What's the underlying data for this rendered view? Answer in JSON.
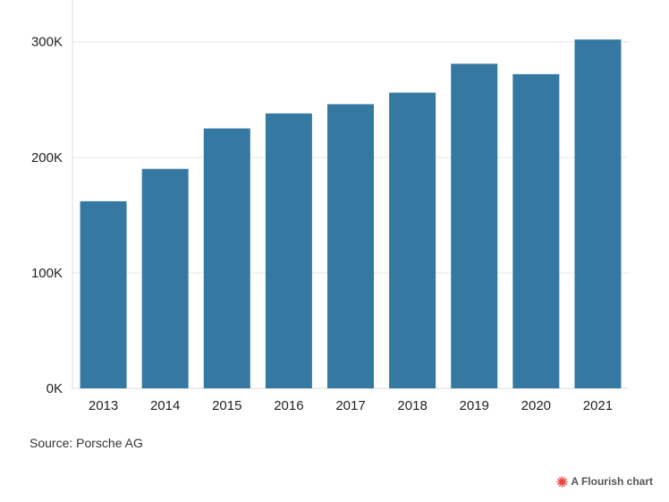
{
  "chart_data": {
    "type": "bar",
    "categories": [
      "2013",
      "2014",
      "2015",
      "2016",
      "2017",
      "2018",
      "2019",
      "2020",
      "2021"
    ],
    "values": [
      162000,
      190000,
      225000,
      238000,
      246000,
      256000,
      281000,
      272000,
      302000
    ],
    "ylim": [
      0,
      330000
    ],
    "yticks": [
      0,
      100000,
      200000,
      300000
    ],
    "ytick_labels": [
      "0K",
      "100K",
      "200K",
      "300K"
    ],
    "grid": true,
    "bar_color": "#3579a2",
    "title": "",
    "xlabel": "",
    "ylabel": ""
  },
  "footer": {
    "source": "Source: Porsche AG",
    "credit": "A Flourish chart",
    "credit_icon": "flourish-burst-icon",
    "credit_color": "#e8453c"
  }
}
